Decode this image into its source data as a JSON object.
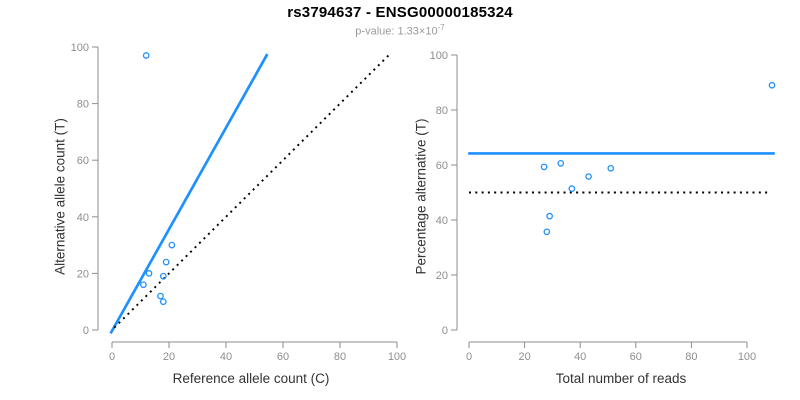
{
  "header": {
    "title": "rs3794637 - ENSG00000185324",
    "subtitle_prefix": "p-value: 1.33×10",
    "subtitle_exponent": "-7"
  },
  "colors": {
    "accent_blue": "#1E90FF",
    "dotted_black": "#000000",
    "axis_gray": "#8e8e8e",
    "tick_label_gray": "#8e8e8e",
    "axis_title_color": "#333333",
    "subtitle_gray": "#9b9b9b"
  },
  "chart_data": [
    {
      "type": "scatter",
      "panel": "left",
      "xlabel": "Reference allele count (C)",
      "ylabel": "Alternative allele count (T)",
      "xlim": [
        0,
        100
      ],
      "ylim": [
        0,
        100
      ],
      "xticks": [
        0,
        20,
        40,
        60,
        80,
        100
      ],
      "yticks": [
        0,
        20,
        40,
        60,
        80,
        100
      ],
      "grid": false,
      "point_style": "open-circle",
      "points": [
        [
          11,
          16
        ],
        [
          12,
          97
        ],
        [
          13,
          20
        ],
        [
          17,
          12
        ],
        [
          18,
          10
        ],
        [
          18,
          19
        ],
        [
          19,
          24
        ],
        [
          21,
          30
        ]
      ],
      "lines": [
        {
          "name": "fit-line",
          "style": "solid",
          "color": "#1E90FF",
          "x": [
            -0.5,
            54.5
          ],
          "y": [
            -1.2,
            97.5
          ]
        },
        {
          "name": "identity-line",
          "style": "dotted",
          "color": "#000000",
          "x": [
            0.8,
            97
          ],
          "y": [
            0.8,
            97
          ]
        }
      ]
    },
    {
      "type": "scatter",
      "panel": "right",
      "xlabel": "Total number of reads",
      "ylabel": "Percentage alternative (T)",
      "xlim": [
        0,
        110
      ],
      "ylim": [
        0,
        100
      ],
      "xticks": [
        0,
        20,
        40,
        60,
        80,
        100
      ],
      "yticks": [
        0,
        20,
        40,
        60,
        80,
        100
      ],
      "grid": false,
      "point_style": "open-circle",
      "points": [
        [
          27,
          59.3
        ],
        [
          28,
          35.7
        ],
        [
          29,
          41.4
        ],
        [
          33,
          60.6
        ],
        [
          37,
          51.4
        ],
        [
          43,
          55.8
        ],
        [
          51,
          58.8
        ],
        [
          109,
          89
        ]
      ],
      "lines": [
        {
          "name": "mean-percentage-line",
          "style": "solid",
          "color": "#1E90FF",
          "x": [
            -0.3,
            110
          ],
          "y": [
            64.2,
            64.2
          ]
        },
        {
          "name": "fifty-percent-line",
          "style": "dotted",
          "color": "#000000",
          "x": [
            0,
            108
          ],
          "y": [
            50,
            50
          ]
        }
      ]
    }
  ]
}
